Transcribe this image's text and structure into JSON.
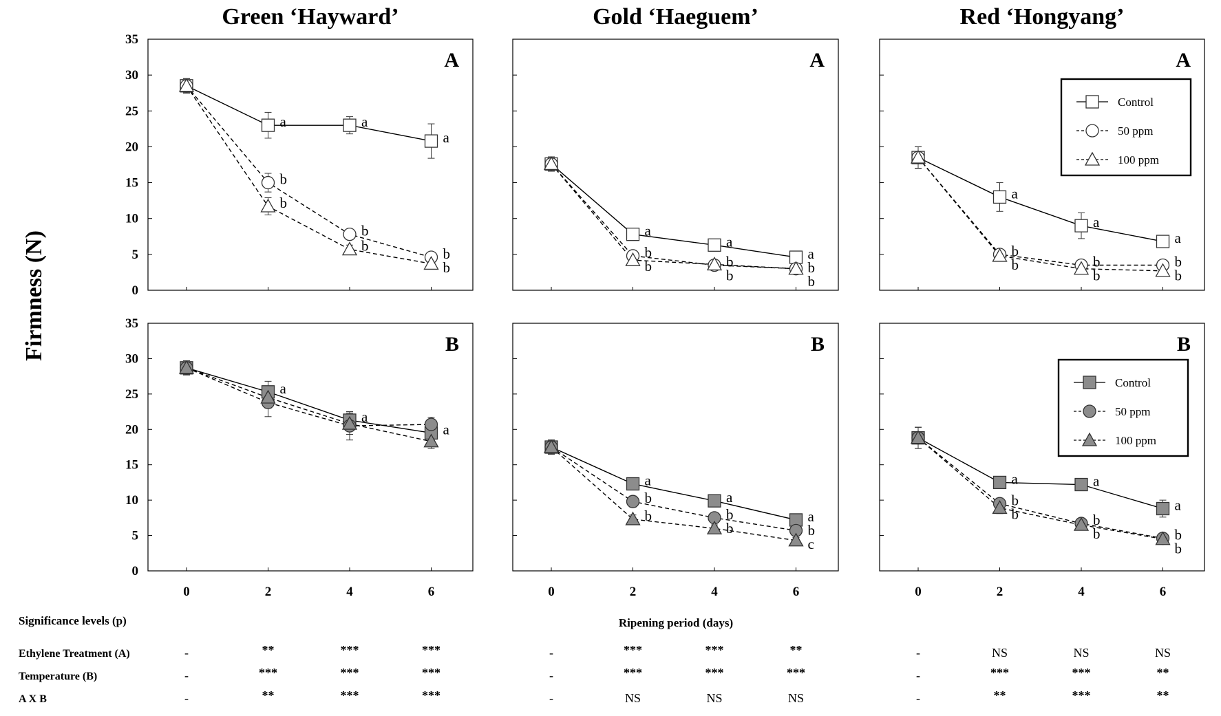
{
  "y_axis_label": "Firmness (N)",
  "x_axis_label": "Ripening period (days)",
  "legend_entries": [
    "Control",
    "50 ppm",
    "100 ppm"
  ],
  "chart_data": [
    {
      "id": "green-A",
      "type": "line",
      "column": "Green ‘Hayward’",
      "panel": "A",
      "x": [
        0,
        2,
        4,
        6
      ],
      "ylim": [
        0,
        35
      ],
      "yticks": [
        0,
        5,
        10,
        15,
        20,
        25,
        30,
        35
      ],
      "marker_fill": "open",
      "series": [
        {
          "name": "Control",
          "values": [
            28.5,
            23.0,
            23.0,
            20.8
          ],
          "errors": [
            1.0,
            1.8,
            1.2,
            2.4
          ],
          "letters": [
            "",
            "a",
            "a",
            "a"
          ]
        },
        {
          "name": "50 ppm",
          "values": [
            28.5,
            15.0,
            7.8,
            4.6
          ],
          "errors": [
            1.0,
            1.3,
            0.6,
            0.5
          ],
          "letters": [
            "",
            "b",
            "b",
            "b"
          ]
        },
        {
          "name": "100 ppm",
          "values": [
            28.5,
            11.7,
            5.7,
            3.7
          ],
          "errors": [
            1.0,
            1.2,
            0.6,
            0.4
          ],
          "letters": [
            "",
            "b",
            "b",
            "b"
          ]
        }
      ]
    },
    {
      "id": "gold-A",
      "type": "line",
      "column": "Gold ‘Haeguem’",
      "panel": "A",
      "x": [
        0,
        2,
        4,
        6
      ],
      "ylim": [
        0,
        35
      ],
      "yticks": [
        0,
        5,
        10,
        15,
        20,
        25,
        30,
        35
      ],
      "marker_fill": "open",
      "series": [
        {
          "name": "Control",
          "values": [
            17.6,
            7.8,
            6.3,
            4.6
          ],
          "errors": [
            1.0,
            0.6,
            0.5,
            0.4
          ],
          "letters": [
            "",
            "a",
            "a",
            "a"
          ]
        },
        {
          "name": "50 ppm",
          "values": [
            17.6,
            4.8,
            3.5,
            3.0
          ],
          "errors": [
            1.0,
            0.5,
            0.4,
            0.3
          ],
          "letters": [
            "",
            "b",
            "b",
            "b"
          ]
        },
        {
          "name": "100 ppm",
          "values": [
            17.6,
            4.2,
            3.6,
            3.0
          ],
          "errors": [
            1.0,
            0.4,
            0.4,
            0.3
          ],
          "letters": [
            "",
            "b",
            "b",
            "b"
          ]
        }
      ]
    },
    {
      "id": "red-A",
      "type": "line",
      "column": "Red ‘Hongyang’",
      "panel": "A",
      "x": [
        0,
        2,
        4,
        6
      ],
      "ylim": [
        0,
        35
      ],
      "yticks": [
        0,
        5,
        10,
        15,
        20,
        25,
        30,
        35
      ],
      "marker_fill": "open",
      "series": [
        {
          "name": "Control",
          "values": [
            18.5,
            13.0,
            9.0,
            6.8
          ],
          "errors": [
            1.5,
            2.0,
            1.8,
            0.5
          ],
          "letters": [
            "",
            "a",
            "a",
            "a"
          ]
        },
        {
          "name": "50 ppm",
          "values": [
            18.5,
            5.0,
            3.5,
            3.5
          ],
          "errors": [
            1.5,
            0.5,
            0.4,
            0.4
          ],
          "letters": [
            "",
            "b",
            "b",
            "b"
          ]
        },
        {
          "name": "100 ppm",
          "values": [
            18.5,
            4.8,
            3.0,
            2.7
          ],
          "errors": [
            1.5,
            0.5,
            0.4,
            0.3
          ],
          "letters": [
            "",
            "b",
            "b",
            "b"
          ]
        }
      ]
    },
    {
      "id": "green-B",
      "type": "line",
      "column": "Green ‘Hayward’",
      "panel": "B",
      "x": [
        0,
        2,
        4,
        6
      ],
      "ylim": [
        0,
        35
      ],
      "yticks": [
        0,
        5,
        10,
        15,
        20,
        25,
        30,
        35
      ],
      "marker_fill": "filled",
      "series": [
        {
          "name": "Control",
          "values": [
            28.7,
            25.3,
            21.3,
            19.5
          ],
          "errors": [
            1.0,
            1.5,
            1.2,
            1.5
          ],
          "letters": [
            "",
            "a",
            "a",
            "a"
          ]
        },
        {
          "name": "50 ppm",
          "values": [
            28.7,
            23.8,
            20.5,
            20.7
          ],
          "errors": [
            1.0,
            2.0,
            2.0,
            1.0
          ],
          "letters": [
            "",
            "",
            "",
            ""
          ]
        },
        {
          "name": "100 ppm",
          "values": [
            28.7,
            24.5,
            20.8,
            18.3
          ],
          "errors": [
            1.0,
            1.5,
            1.5,
            1.0
          ],
          "letters": [
            "",
            "",
            "",
            ""
          ]
        }
      ]
    },
    {
      "id": "gold-B",
      "type": "line",
      "column": "Gold ‘Haeguem’",
      "panel": "B",
      "x": [
        0,
        2,
        4,
        6
      ],
      "ylim": [
        0,
        35
      ],
      "yticks": [
        0,
        5,
        10,
        15,
        20,
        25,
        30,
        35
      ],
      "marker_fill": "filled",
      "series": [
        {
          "name": "Control",
          "values": [
            17.5,
            12.3,
            9.9,
            7.2
          ],
          "errors": [
            1.0,
            0.8,
            0.6,
            0.5
          ],
          "letters": [
            "",
            "a",
            "a",
            "a"
          ]
        },
        {
          "name": "50 ppm",
          "values": [
            17.5,
            9.8,
            7.5,
            5.7
          ],
          "errors": [
            1.0,
            0.8,
            0.6,
            0.4
          ],
          "letters": [
            "",
            "b",
            "b",
            "b"
          ]
        },
        {
          "name": "100 ppm",
          "values": [
            17.5,
            7.3,
            6.0,
            4.3
          ],
          "errors": [
            1.0,
            0.6,
            0.5,
            0.4
          ],
          "letters": [
            "",
            "b",
            "b",
            "c"
          ]
        }
      ]
    },
    {
      "id": "red-B",
      "type": "line",
      "column": "Red ‘Hongyang’",
      "panel": "B",
      "x": [
        0,
        2,
        4,
        6
      ],
      "ylim": [
        0,
        35
      ],
      "yticks": [
        0,
        5,
        10,
        15,
        20,
        25,
        30,
        35
      ],
      "marker_fill": "filled",
      "series": [
        {
          "name": "Control",
          "values": [
            18.8,
            12.5,
            12.2,
            8.8
          ],
          "errors": [
            1.5,
            0.8,
            0.6,
            1.2
          ],
          "letters": [
            "",
            "a",
            "a",
            "a"
          ]
        },
        {
          "name": "50 ppm",
          "values": [
            18.8,
            9.5,
            6.7,
            4.6
          ],
          "errors": [
            1.5,
            0.8,
            0.5,
            0.4
          ],
          "letters": [
            "",
            "b",
            "b",
            "b"
          ]
        },
        {
          "name": "100 ppm",
          "values": [
            18.8,
            8.9,
            6.5,
            4.5
          ],
          "errors": [
            1.5,
            0.8,
            0.5,
            0.4
          ],
          "letters": [
            "",
            "b",
            "b",
            "b"
          ]
        }
      ]
    }
  ],
  "significance": {
    "heading": "Significance levels (p)",
    "rows": [
      {
        "label": "Ethylene Treatment (A)",
        "values": [
          "-",
          "**",
          "***",
          "***",
          "-",
          "***",
          "***",
          "**",
          "-",
          "NS",
          "NS",
          "NS"
        ]
      },
      {
        "label": "Temperature (B)",
        "values": [
          "-",
          "***",
          "***",
          "***",
          "-",
          "***",
          "***",
          "***",
          "-",
          "***",
          "***",
          "**"
        ]
      },
      {
        "label": "A X B",
        "values": [
          "-",
          "**",
          "***",
          "***",
          "-",
          "NS",
          "NS",
          "NS",
          "-",
          "**",
          "***",
          "**"
        ]
      }
    ]
  }
}
